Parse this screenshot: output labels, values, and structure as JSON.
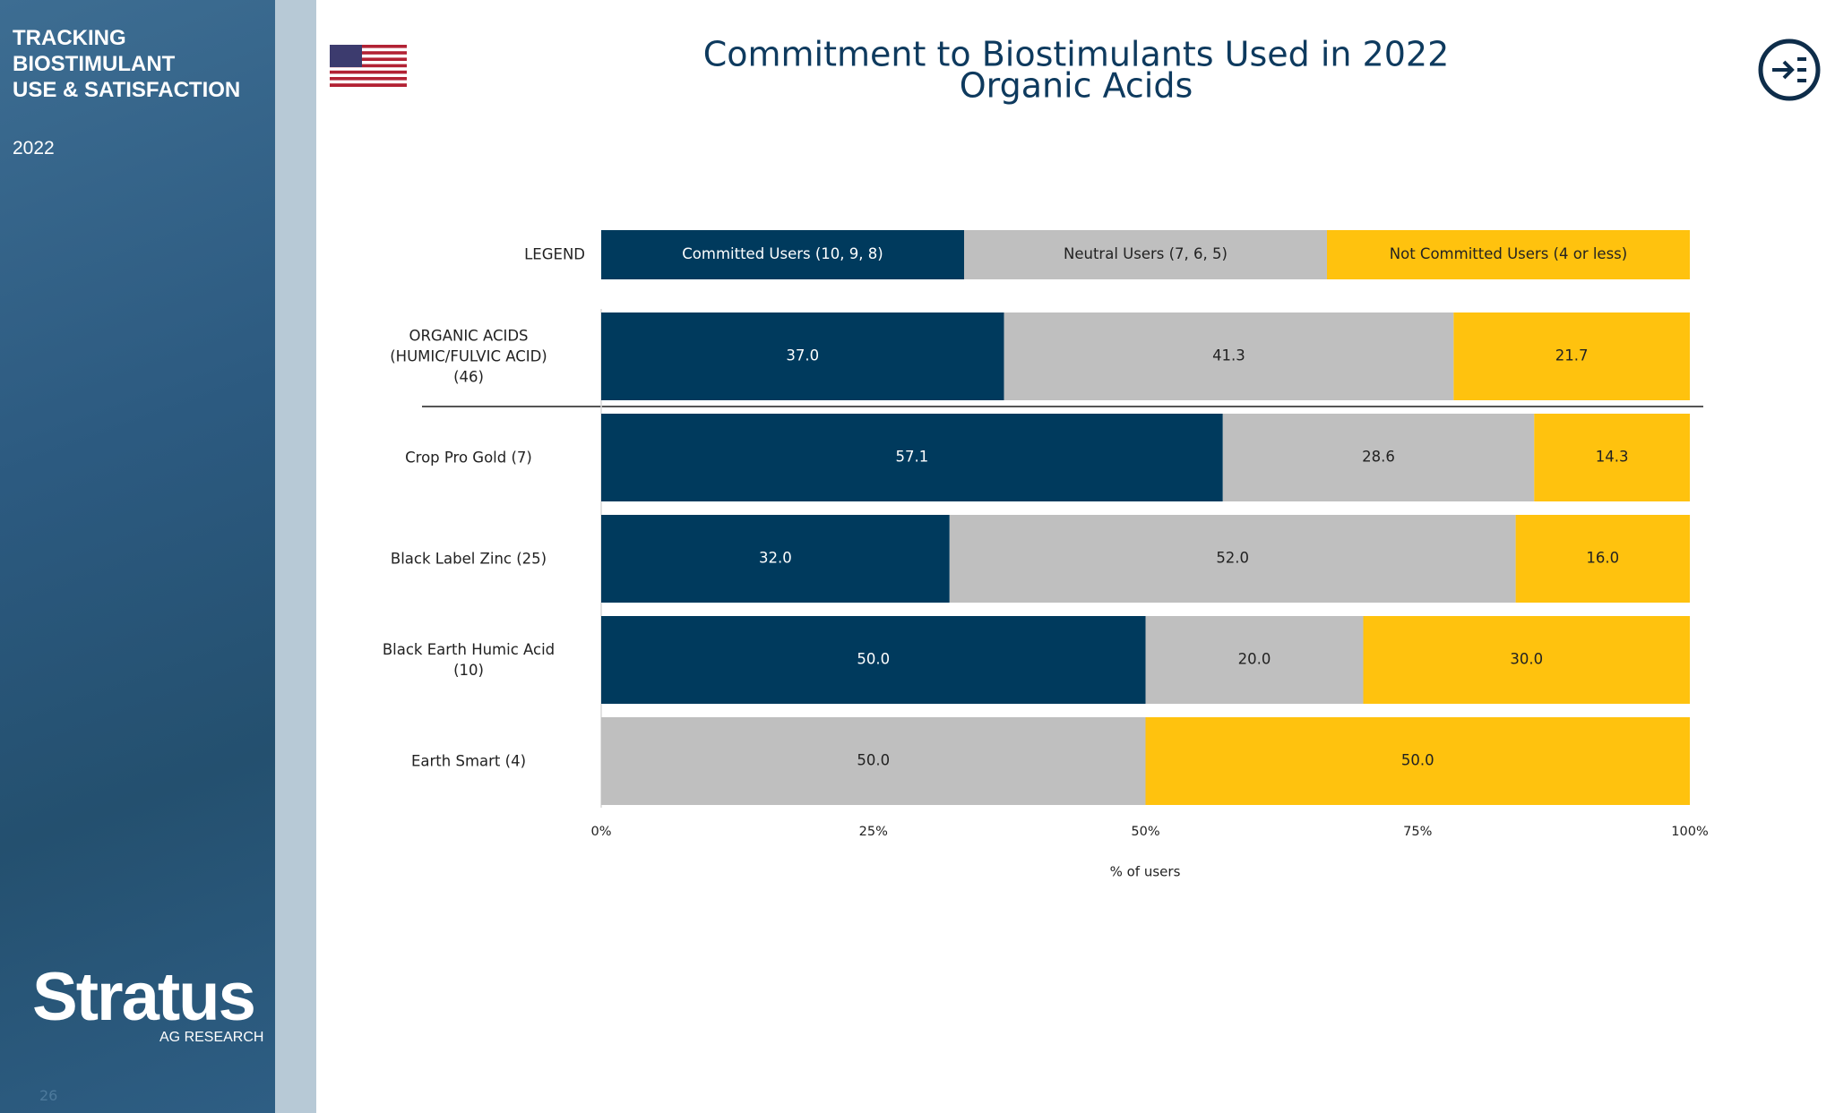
{
  "sidebar": {
    "title": "TRACKING\nBIOSTIMULANT\nUSE & SATISFACTION",
    "year": "2022",
    "logo": "Stratus",
    "logo_sub": "AG RESEARCH",
    "page": "26"
  },
  "chart_data": {
    "type": "stacked_bar_horizontal",
    "title": "Commitment to Biostimulants Used in 2022",
    "subtitle": "Organic Acids",
    "legend_label": "LEGEND",
    "categories": [
      "ORGANIC ACIDS\n(HUMIC/FULVIC ACID)\n(46)",
      "Crop Pro Gold (7)",
      "Black Label Zinc (25)",
      "Black Earth Humic Acid\n(10)",
      "Earth Smart (4)"
    ],
    "series": [
      {
        "name": "Committed Users (10, 9, 8)",
        "color": "#003a5d",
        "text_color": "#ffffff",
        "values": [
          37.0,
          57.1,
          32.0,
          50.0,
          0
        ],
        "value_labels": [
          "37.0",
          "57.1",
          "32.0",
          "50.0",
          null
        ]
      },
      {
        "name": "Neutral Users (7, 6, 5)",
        "color": "#bfbfbf",
        "text_color": "#222222",
        "values": [
          41.3,
          28.6,
          52.0,
          20.0,
          50.0
        ],
        "value_labels": [
          "41.3",
          "28.6",
          "52.0",
          "20.0",
          "50.0"
        ]
      },
      {
        "name": "Not Committed Users (4 or less)",
        "color": "#ffc20e",
        "text_color": "#222222",
        "values": [
          21.7,
          14.3,
          16.0,
          30.0,
          50.0
        ],
        "value_labels": [
          "21.7",
          "14.3",
          "16.0",
          "30.0",
          "50.0"
        ]
      }
    ],
    "xlim": [
      0,
      100
    ],
    "xticks": [
      {
        "value": 0,
        "label": "0%"
      },
      {
        "value": 25,
        "label": "25%"
      },
      {
        "value": 50,
        "label": "50%"
      },
      {
        "value": 75,
        "label": "75%"
      },
      {
        "value": 100,
        "label": "100%"
      }
    ],
    "xlabel": "% of users",
    "grid": false
  }
}
